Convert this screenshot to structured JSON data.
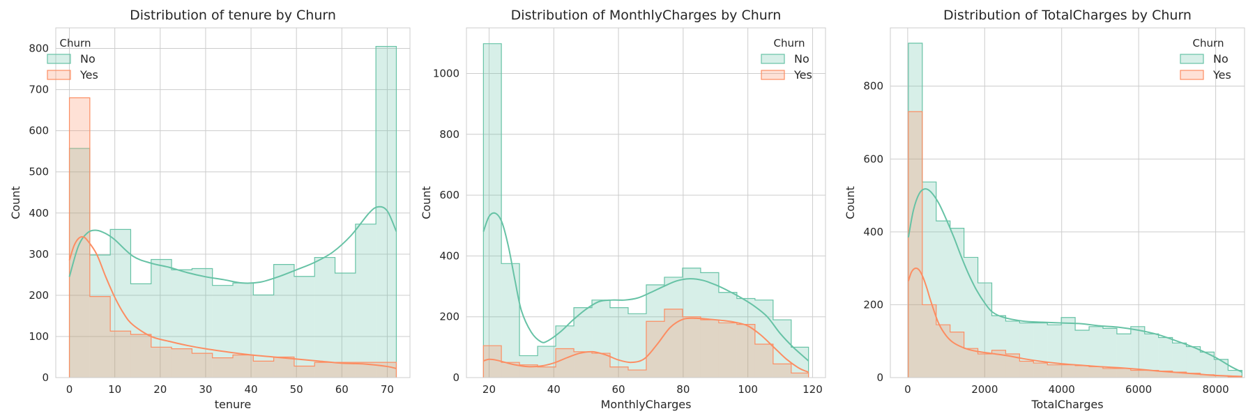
{
  "colors": {
    "No": "#66c2a5",
    "Yes": "#fc8d62",
    "grid": "#cccccc",
    "spine": "#cccccc",
    "text": "#262626"
  },
  "chart_data": [
    {
      "type": "histogram",
      "title": "Distribution of tenure by Churn",
      "xlabel": "tenure",
      "ylabel": "Count",
      "xlim": [
        -3,
        75
      ],
      "ylim": [
        0,
        850
      ],
      "xticks": [
        0,
        10,
        20,
        30,
        40,
        50,
        60,
        70
      ],
      "yticks": [
        0,
        100,
        200,
        300,
        400,
        500,
        600,
        700,
        800
      ],
      "grid": true,
      "legend": {
        "title": "Churn",
        "placement": "upper left",
        "entries": [
          "No",
          "Yes"
        ]
      },
      "bin_edges": [
        0,
        3.6,
        7.2,
        10.8,
        14.4,
        18,
        21.6,
        25.2,
        28.8,
        32.4,
        36,
        39.6,
        43.2,
        46.8,
        50.4,
        54,
        57.6,
        61.2,
        64.8,
        68.4,
        72
      ],
      "series": [
        {
          "name": "No",
          "counts": [
            557,
            298,
            360,
            228,
            287,
            262,
            265,
            224,
            230,
            201,
            275,
            246,
            292,
            254,
            373,
            805
          ],
          "bin_edges": [
            0,
            4.5,
            9,
            13.5,
            18,
            22.5,
            27,
            31.5,
            36,
            40.5,
            45,
            49.5,
            54,
            58.5,
            63,
            67.5,
            72
          ],
          "kde_x": [
            0,
            2,
            4,
            6,
            8,
            10,
            14,
            18,
            22,
            26,
            30,
            34,
            38,
            42,
            46,
            50,
            54,
            58,
            62,
            66,
            68,
            70,
            72
          ],
          "kde_y": [
            245,
            320,
            352,
            358,
            350,
            335,
            295,
            278,
            268,
            255,
            245,
            238,
            230,
            232,
            245,
            262,
            280,
            305,
            345,
            400,
            415,
            405,
            355
          ]
        },
        {
          "name": "Yes",
          "counts": [
            680,
            197,
            113,
            105,
            74,
            70,
            59,
            48,
            55,
            40,
            50,
            28,
            37,
            37
          ],
          "bin_edges": [
            0,
            4.5,
            9,
            13.5,
            18,
            22.5,
            27,
            31.5,
            36,
            40.5,
            45,
            49.5,
            54,
            58.5,
            72
          ],
          "kde_x": [
            0,
            1,
            2,
            3,
            4,
            6,
            8,
            10,
            12,
            14,
            18,
            22,
            26,
            30,
            35,
            40,
            45,
            50,
            55,
            60,
            65,
            70,
            72
          ],
          "kde_y": [
            285,
            320,
            338,
            342,
            333,
            300,
            245,
            195,
            155,
            128,
            100,
            88,
            78,
            70,
            62,
            55,
            50,
            45,
            40,
            35,
            33,
            27,
            22
          ]
        }
      ]
    },
    {
      "type": "histogram",
      "title": "Distribution of MonthlyCharges by Churn",
      "xlabel": "MonthlyCharges",
      "ylabel": "Count",
      "xlim": [
        13,
        124
      ],
      "ylim": [
        0,
        1150
      ],
      "xticks": [
        20,
        40,
        60,
        80,
        100,
        120
      ],
      "yticks": [
        0,
        200,
        400,
        600,
        800,
        1000
      ],
      "grid": true,
      "legend": {
        "title": "Churn",
        "placement": "upper right",
        "entries": [
          "No",
          "Yes"
        ]
      },
      "series": [
        {
          "name": "No",
          "counts": [
            1098,
            375,
            72,
            103,
            170,
            230,
            255,
            230,
            210,
            305,
            330,
            360,
            345,
            280,
            260,
            255,
            190,
            100
          ],
          "bin_edges": [
            18.25,
            23.8,
            29.4,
            35,
            40.6,
            46.2,
            51.8,
            57.4,
            63,
            68.6,
            74.2,
            79.8,
            85.4,
            91,
            96.6,
            102.2,
            107.8,
            113.4,
            118.75
          ],
          "kde_x": [
            18.25,
            20,
            22,
            24,
            26,
            28,
            30,
            33,
            36,
            38,
            42,
            46,
            50,
            54,
            58,
            62,
            66,
            70,
            74,
            78,
            82,
            86,
            90,
            94,
            98,
            102,
            106,
            110,
            114,
            118.75
          ],
          "kde_y": [
            480,
            530,
            540,
            510,
            430,
            320,
            220,
            150,
            118,
            120,
            150,
            190,
            225,
            250,
            255,
            255,
            262,
            280,
            300,
            318,
            325,
            320,
            305,
            285,
            262,
            235,
            200,
            145,
            100,
            55
          ]
        },
        {
          "name": "Yes",
          "counts": [
            105,
            50,
            42,
            35,
            95,
            85,
            80,
            35,
            25,
            185,
            225,
            200,
            190,
            180,
            175,
            110,
            45,
            15
          ],
          "bin_edges": [
            18.25,
            23.8,
            29.4,
            35,
            40.6,
            46.2,
            51.8,
            57.4,
            63,
            68.6,
            74.2,
            79.8,
            85.4,
            91,
            96.6,
            102.2,
            107.8,
            113.4,
            118.75
          ],
          "kde_x": [
            18.25,
            20,
            22,
            25,
            28,
            32,
            36,
            40,
            44,
            48,
            52,
            56,
            60,
            64,
            68,
            72,
            76,
            80,
            84,
            88,
            92,
            96,
            100,
            104,
            108,
            112,
            116,
            118.75
          ],
          "kde_y": [
            55,
            60,
            58,
            50,
            42,
            36,
            38,
            48,
            65,
            80,
            85,
            75,
            58,
            50,
            62,
            110,
            165,
            192,
            195,
            192,
            188,
            182,
            170,
            140,
            100,
            60,
            30,
            18
          ]
        }
      ]
    },
    {
      "type": "histogram",
      "title": "Distribution of TotalCharges by Churn",
      "xlabel": "TotalCharges",
      "ylabel": "Count",
      "xlim": [
        -450,
        8750
      ],
      "ylim": [
        0,
        960
      ],
      "xticks": [
        0,
        2000,
        4000,
        6000,
        8000
      ],
      "yticks": [
        0,
        200,
        400,
        600,
        800
      ],
      "grid": true,
      "legend": {
        "title": "Churn",
        "placement": "upper right",
        "entries": [
          "No",
          "Yes"
        ]
      },
      "series": [
        {
          "name": "No",
          "counts": [
            918,
            537,
            430,
            410,
            330,
            260,
            170,
            155,
            150,
            150,
            145,
            165,
            130,
            140,
            135,
            120,
            140,
            120,
            110,
            95,
            85,
            70,
            50,
            20
          ],
          "bin_edges": [
            18.8,
            380,
            741,
            1102,
            1463,
            1824,
            2185,
            2546,
            2907,
            3268,
            3629,
            3990,
            4351,
            4712,
            5073,
            5434,
            5795,
            6156,
            6517,
            6878,
            7239,
            7600,
            7961,
            8322,
            8684.8
          ],
          "kde_x": [
            18.8,
            150,
            300,
            450,
            600,
            800,
            1000,
            1200,
            1400,
            1600,
            1800,
            2000,
            2200,
            2500,
            3000,
            3500,
            4000,
            4500,
            5000,
            5500,
            6000,
            6500,
            7000,
            7500,
            8000,
            8400,
            8684.8
          ],
          "kde_y": [
            385,
            460,
            505,
            518,
            510,
            480,
            435,
            385,
            330,
            280,
            238,
            205,
            180,
            165,
            155,
            152,
            150,
            148,
            142,
            138,
            130,
            118,
            100,
            80,
            55,
            30,
            15
          ]
        },
        {
          "name": "Yes",
          "counts": [
            730,
            200,
            145,
            125,
            80,
            65,
            75,
            65,
            45,
            40,
            35,
            35,
            33,
            30,
            25,
            25,
            20,
            20,
            18,
            15,
            12,
            8,
            5,
            2
          ],
          "bin_edges": [
            18.8,
            380,
            741,
            1102,
            1463,
            1824,
            2185,
            2546,
            2907,
            3268,
            3629,
            3990,
            4351,
            4712,
            5073,
            5434,
            5795,
            6156,
            6517,
            6878,
            7239,
            7600,
            7961,
            8322,
            8684.8
          ],
          "kde_x": [
            18.8,
            100,
            200,
            300,
            400,
            500,
            600,
            800,
            1000,
            1200,
            1500,
            1800,
            2200,
            2600,
            3000,
            3500,
            4000,
            4500,
            5000,
            5500,
            6000,
            6500,
            7000,
            7500,
            8000,
            8684.8
          ],
          "kde_y": [
            265,
            290,
            300,
            295,
            275,
            245,
            210,
            150,
            115,
            95,
            80,
            72,
            66,
            60,
            52,
            44,
            38,
            34,
            30,
            27,
            23,
            18,
            14,
            10,
            6,
            3
          ]
        }
      ]
    }
  ]
}
